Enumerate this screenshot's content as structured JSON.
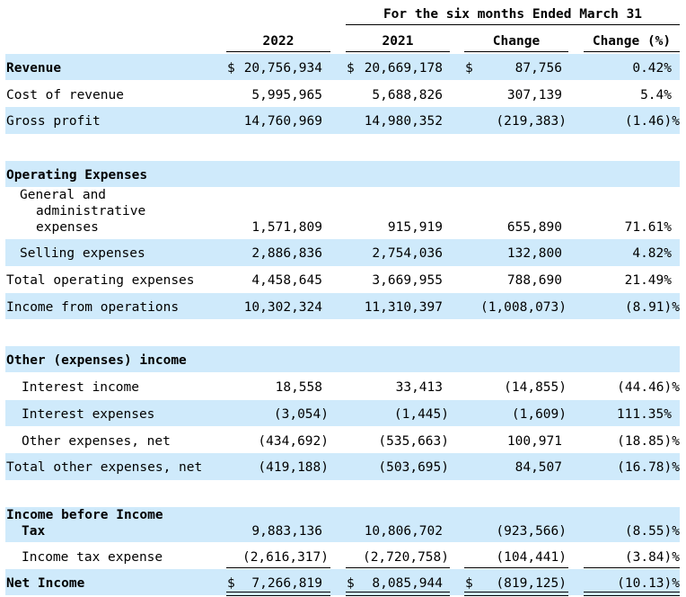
{
  "header": {
    "period": "For the six  months Ended March  31",
    "col_2022": "2022",
    "col_2021": "2021",
    "col_change": "Change",
    "col_change_pct": "Change (%)"
  },
  "rows": {
    "revenue": {
      "label": "Revenue",
      "v2022": "20,756,934",
      "v2021": "20,669,178",
      "change": "87,756",
      "pct": "0.42%",
      "cur": "$"
    },
    "cost_of_revenue": {
      "label": "Cost of revenue",
      "v2022": "5,995,965",
      "v2021": "5,688,826",
      "change": "307,139",
      "pct": "5.4%"
    },
    "gross_profit": {
      "label": "Gross profit",
      "v2022": "14,760,969",
      "v2021": "14,980,352",
      "change": "(219,383)",
      "pct": "(1.46)%"
    },
    "operating_expenses": {
      "label": "Operating Expenses"
    },
    "general_admin": {
      "label_1": "General and",
      "label_2": "administrative",
      "label_3": "expenses",
      "v2022": "1,571,809",
      "v2021": "915,919",
      "change": "655,890",
      "pct": "71.61%"
    },
    "selling": {
      "label": "Selling expenses",
      "v2022": "2,886,836",
      "v2021": "2,754,036",
      "change": "132,800",
      "pct": "4.82%"
    },
    "total_operating": {
      "label": "Total operating expenses",
      "v2022": "4,458,645",
      "v2021": "3,669,955",
      "change": "788,690",
      "pct": "21.49%"
    },
    "income_from_operations": {
      "label": "Income from operations",
      "v2022": "10,302,324",
      "v2021": "11,310,397",
      "change": "(1,008,073)",
      "pct": "(8.91)%"
    },
    "other_income": {
      "label": "Other (expenses) income"
    },
    "interest_income": {
      "label": "Interest income",
      "v2022": "18,558",
      "v2021": "33,413",
      "change": "(14,855)",
      "pct": "(44.46)%"
    },
    "interest_expenses": {
      "label": "Interest expenses",
      "v2022": "(3,054)",
      "v2021": "(1,445)",
      "change": "(1,609)",
      "pct": "111.35%"
    },
    "other_expenses_net": {
      "label": "Other expenses, net",
      "v2022": "(434,692)",
      "v2021": "(535,663)",
      "change": "100,971",
      "pct": "(18.85)%"
    },
    "total_other": {
      "label": "Total other expenses, net",
      "v2022": "(419,188)",
      "v2021": "(503,695)",
      "change": "84,507",
      "pct": "(16.78)%"
    },
    "income_before_tax": {
      "label_1": "Income before Income",
      "label_2": "Tax",
      "v2022": "9,883,136",
      "v2021": "10,806,702",
      "change": "(923,566)",
      "pct": "(8.55)%"
    },
    "income_tax_expense": {
      "label": "Income tax expense",
      "v2022": "(2,616,317)",
      "v2021": "(2,720,758)",
      "change": "(104,441)",
      "pct": "(3.84)%"
    },
    "net_income": {
      "label": "Net Income",
      "v2022": "7,266,819",
      "v2021": "8,085,944",
      "change": "(819,125)",
      "pct": "(10.13)%",
      "cur": "$"
    }
  },
  "colors": {
    "band": "#cfeafb",
    "text": "#000000"
  }
}
